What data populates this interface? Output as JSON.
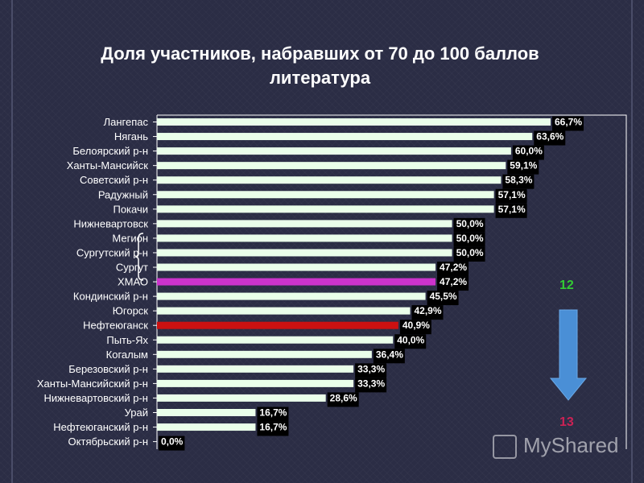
{
  "title_line1": "Доля участников, набравших от 70 до 100 баллов",
  "title_line2": "литература",
  "annotation_top": "12",
  "annotation_bottom": "13",
  "watermark": "MyShared",
  "colors": {
    "background": "#2b2d45",
    "bar_default": "#eaffea",
    "bar_highlight_hmao": "#cc33cc",
    "bar_highlight_nefteyugansk": "#cc1111",
    "annotation_top": "#33cc33",
    "annotation_bottom": "#cc2255",
    "arrow": "#4a8fd6"
  },
  "chart_data": {
    "type": "bar",
    "orientation": "horizontal",
    "title": "Доля участников, набравших от 70 до 100 баллов литература",
    "categories": [
      "Лангепас",
      "Нягань",
      "Белоярский р-н",
      "Ханты-Мансийск",
      "Советский р-н",
      "Радужный",
      "Покачи",
      "Нижневартовск",
      "Мегион",
      "Сургутский р-н",
      "Сургут",
      "ХМАО",
      "Кондинский р-н",
      "Югорск",
      "Нефтеюганск",
      "Пыть-Ях",
      "Когалым",
      "Березовский р-н",
      "Ханты-Мансийский р-н",
      "Нижневартовский р-н",
      "Урай",
      "Нефтеюганский р-н",
      "Октябрьский р-н"
    ],
    "values": [
      66.7,
      63.6,
      60.0,
      59.1,
      58.3,
      57.1,
      57.1,
      50.0,
      50.0,
      50.0,
      47.2,
      47.2,
      45.5,
      42.9,
      40.9,
      40.0,
      36.4,
      33.3,
      33.3,
      28.6,
      16.7,
      16.7,
      0.0
    ],
    "value_labels": [
      "66,7%",
      "63,6%",
      "60,0%",
      "59,1%",
      "58,3%",
      "57,1%",
      "57,1%",
      "50,0%",
      "50,0%",
      "50,0%",
      "47,2%",
      "47,2%",
      "45,5%",
      "42,9%",
      "40,9%",
      "40,0%",
      "36,4%",
      "33,3%",
      "33,3%",
      "28,6%",
      "16,7%",
      "16,7%",
      "0,0%"
    ],
    "highlight": {
      "ХМАО": "#cc33cc",
      "Нефтеюганск": "#cc1111"
    },
    "xlim": [
      0,
      67
    ],
    "grid": false,
    "legend": "none"
  }
}
